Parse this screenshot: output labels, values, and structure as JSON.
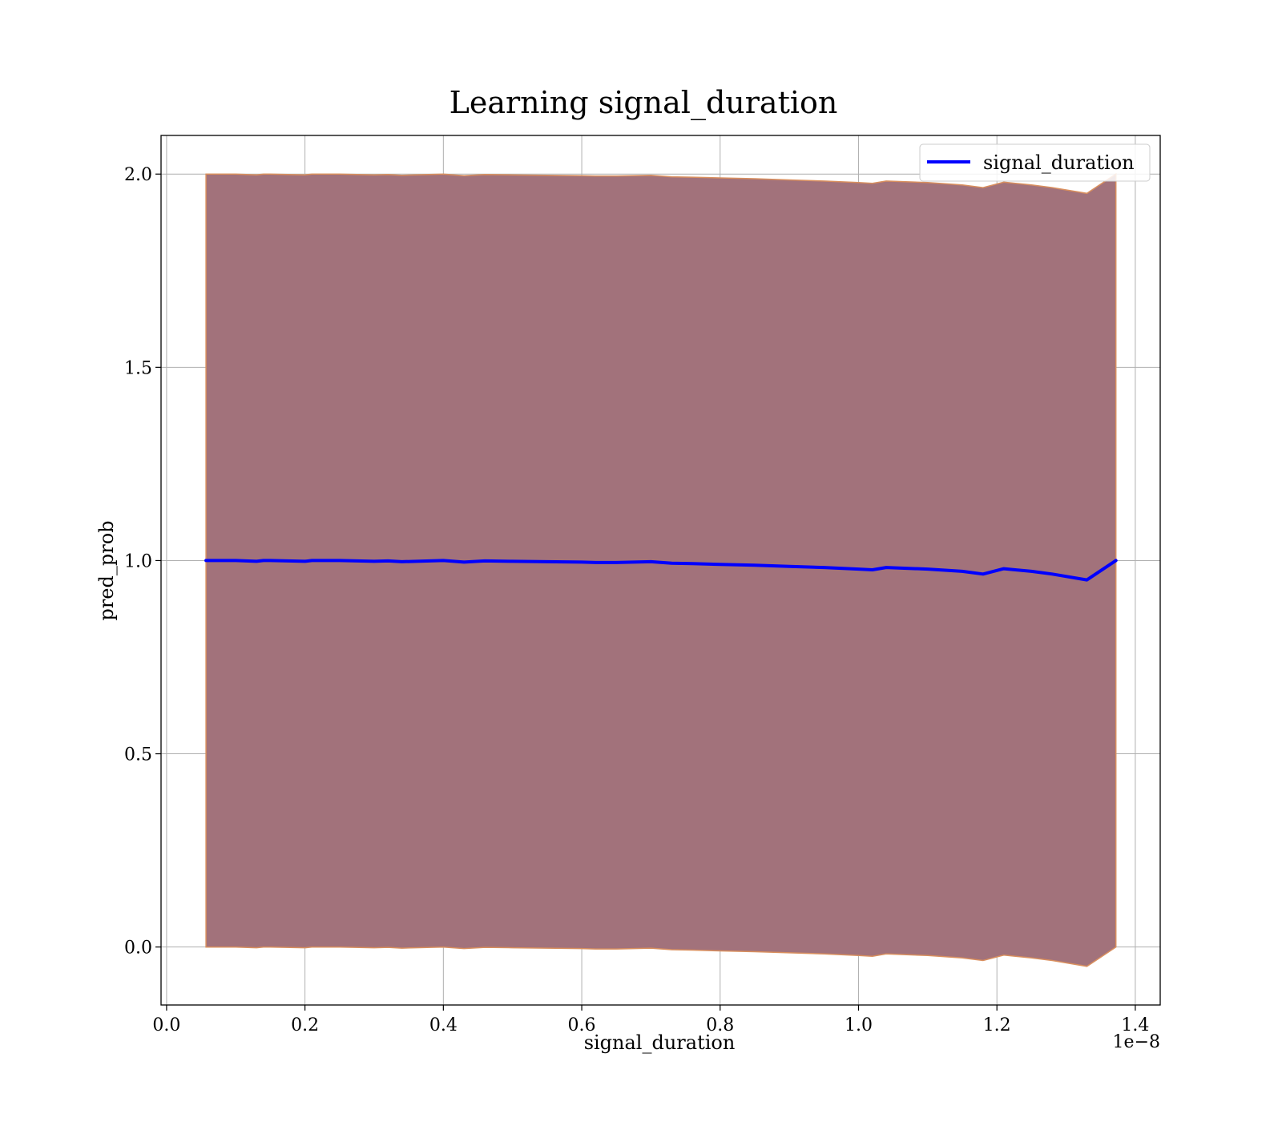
{
  "chart_data": {
    "type": "line",
    "title": "Learning signal_duration",
    "xlabel": "signal_duration",
    "ylabel": "pred_prob",
    "x_offset_label": "1e−8",
    "xlim": [
      -0.008,
      1.436
    ],
    "ylim": [
      -0.15,
      2.1
    ],
    "x_ticks": [
      0.0,
      0.2,
      0.4,
      0.6,
      0.8,
      1.0,
      1.2,
      1.4
    ],
    "x_tick_labels": [
      "0.0",
      "0.2",
      "0.4",
      "0.6",
      "0.8",
      "1.0",
      "1.2",
      "1.4"
    ],
    "y_ticks": [
      0.0,
      0.5,
      1.0,
      1.5,
      2.0
    ],
    "y_tick_labels": [
      "0.0",
      "0.5",
      "1.0",
      "1.5",
      "2.0"
    ],
    "grid": true,
    "legend_position": "top-right",
    "colors": {
      "line": "#0000ff",
      "band_fill": "#a2727b",
      "band_edge": "#d98f5e",
      "grid": "#b0b0b0"
    },
    "series": [
      {
        "name": "signal_duration",
        "x": [
          0.057,
          0.1,
          0.13,
          0.14,
          0.15,
          0.2,
          0.21,
          0.25,
          0.3,
          0.32,
          0.34,
          0.4,
          0.43,
          0.46,
          0.5,
          0.55,
          0.6,
          0.62,
          0.65,
          0.7,
          0.73,
          0.76,
          0.8,
          0.85,
          0.9,
          0.95,
          1.0,
          1.02,
          1.04,
          1.1,
          1.15,
          1.18,
          1.21,
          1.25,
          1.28,
          1.33,
          1.372
        ],
        "y": [
          1.0,
          1.0,
          0.998,
          1.0,
          1.0,
          0.998,
          1.0,
          1.0,
          0.998,
          0.999,
          0.997,
          1.0,
          0.996,
          0.999,
          0.998,
          0.997,
          0.996,
          0.995,
          0.995,
          0.997,
          0.993,
          0.992,
          0.99,
          0.988,
          0.985,
          0.982,
          0.978,
          0.976,
          0.982,
          0.978,
          0.972,
          0.965,
          0.979,
          0.972,
          0.965,
          0.95,
          1.0
        ],
        "upper": [
          2.0,
          2.0,
          1.998,
          2.0,
          2.0,
          1.998,
          2.0,
          2.0,
          1.998,
          1.999,
          1.997,
          2.0,
          1.996,
          1.999,
          1.998,
          1.997,
          1.996,
          1.995,
          1.995,
          1.997,
          1.993,
          1.992,
          1.99,
          1.988,
          1.985,
          1.982,
          1.978,
          1.976,
          1.982,
          1.978,
          1.972,
          1.965,
          1.979,
          1.972,
          1.965,
          1.95,
          2.0
        ],
        "lower": [
          0.0,
          0.0,
          -0.002,
          0.0,
          0.0,
          -0.002,
          0.0,
          0.0,
          -0.002,
          -0.001,
          -0.003,
          0.0,
          -0.004,
          -0.001,
          -0.002,
          -0.003,
          -0.004,
          -0.005,
          -0.005,
          -0.003,
          -0.007,
          -0.008,
          -0.01,
          -0.012,
          -0.015,
          -0.018,
          -0.022,
          -0.024,
          -0.018,
          -0.022,
          -0.028,
          -0.035,
          -0.021,
          -0.028,
          -0.035,
          -0.05,
          0.0
        ]
      }
    ]
  }
}
